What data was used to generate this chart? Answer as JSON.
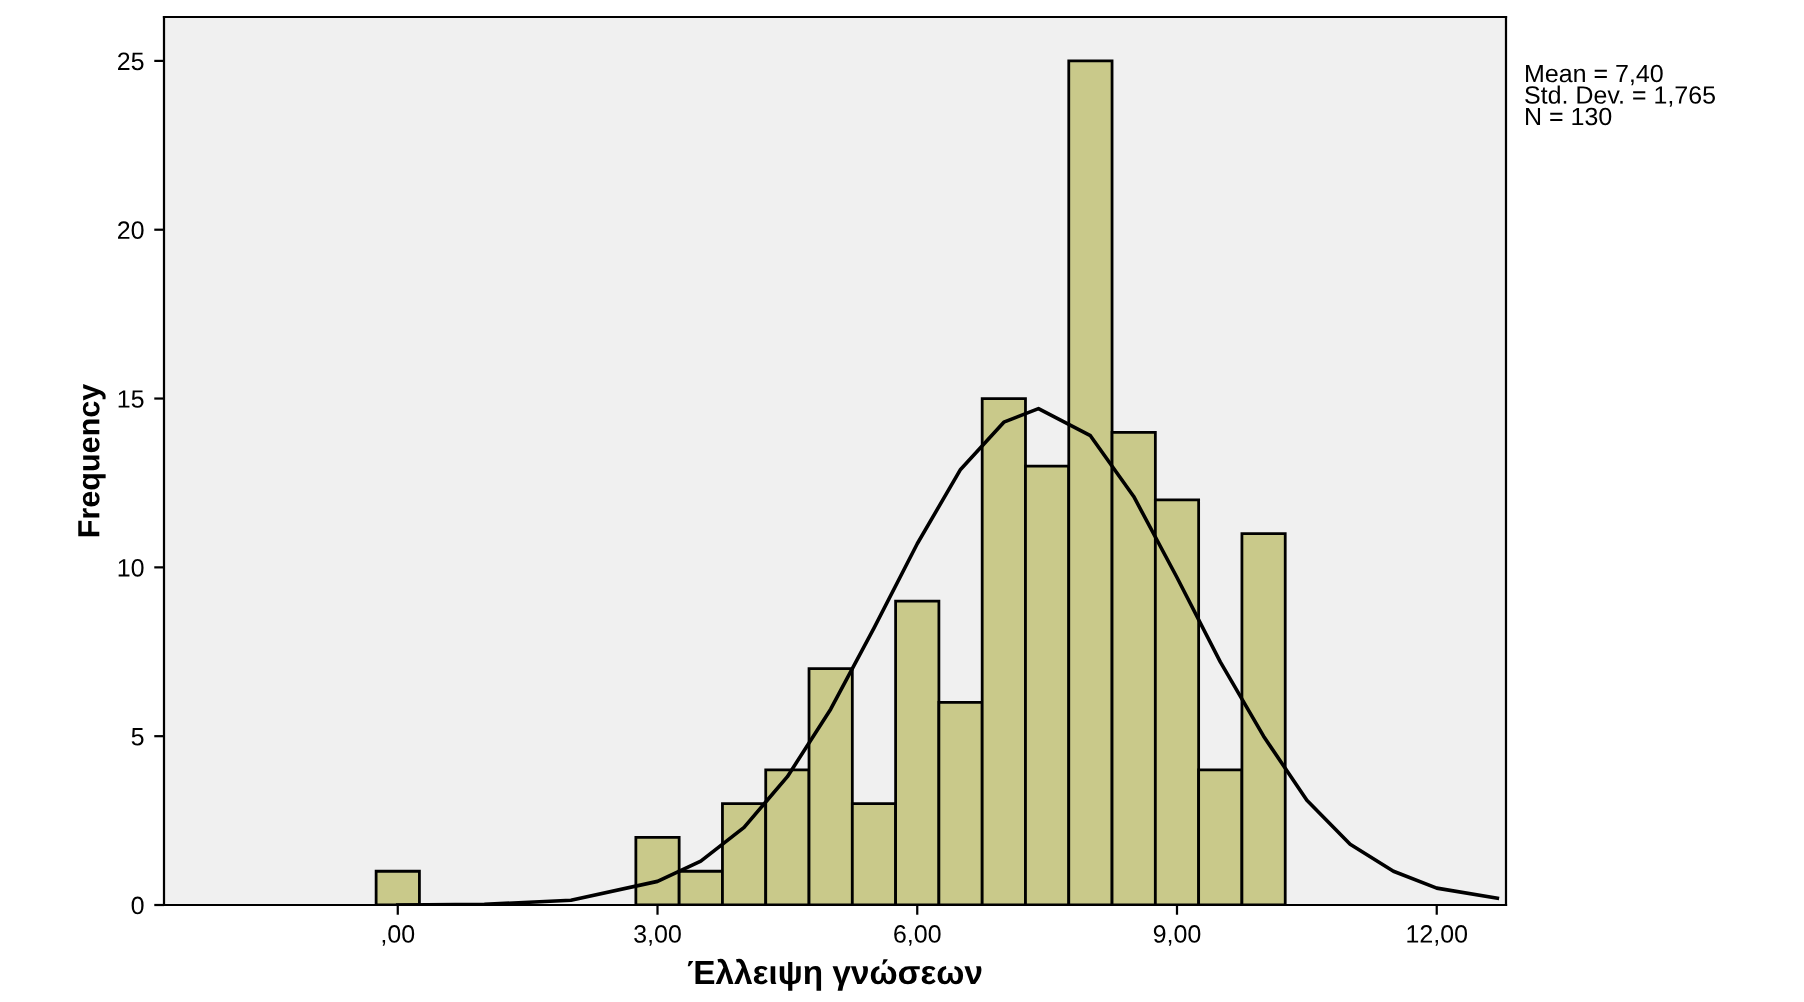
{
  "chart_data": {
    "type": "histogram",
    "xlabel": "Έλλειψη γνώσεων",
    "ylabel": "Frequency",
    "bins": [
      -0.25,
      0.25,
      0.75,
      1.25,
      1.75,
      2.25,
      2.75,
      3.25,
      3.75,
      4.25,
      4.75,
      5.25,
      5.75,
      6.25,
      6.75,
      7.25,
      7.75,
      8.25,
      8.75,
      9.25,
      9.75,
      10.25
    ],
    "values": [
      1,
      0,
      0,
      0,
      0,
      0,
      2,
      1,
      3,
      4,
      7,
      3,
      9,
      6,
      15,
      13,
      25,
      14,
      12,
      4,
      11
    ],
    "color": "#c9c98a",
    "series": [
      {
        "type": "line",
        "color": "#000000",
        "x": [
          0,
          1,
          2,
          3,
          3.5,
          4,
          4.5,
          5,
          5.5,
          6,
          6.5,
          7,
          7.4,
          8,
          8.5,
          9,
          9.5,
          10,
          10.5,
          11,
          11.5,
          12,
          12.7
        ],
        "values": [
          0,
          0.02,
          0.14,
          0.7,
          1.3,
          2.3,
          3.8,
          5.8,
          8.2,
          10.7,
          12.9,
          14.3,
          14.7,
          13.9,
          12.1,
          9.7,
          7.2,
          5.0,
          3.1,
          1.8,
          1.0,
          0.5,
          0.2
        ]
      }
    ],
    "xlim": [
      -2.7,
      12.8
    ],
    "ylim": [
      0,
      26.3
    ],
    "xticks": [
      {
        "value": 0,
        "label": ",00"
      },
      {
        "value": 3,
        "label": "3,00"
      },
      {
        "value": 6,
        "label": "6,00"
      },
      {
        "value": 9,
        "label": "9,00"
      },
      {
        "value": 12,
        "label": "12,00"
      }
    ],
    "yticks": [
      0,
      5,
      10,
      15,
      20,
      25
    ],
    "grid": false,
    "legend": false,
    "annotations": [
      "Mean = 7,40\nStd. Dev. = 1,765\nN = 130"
    ]
  }
}
